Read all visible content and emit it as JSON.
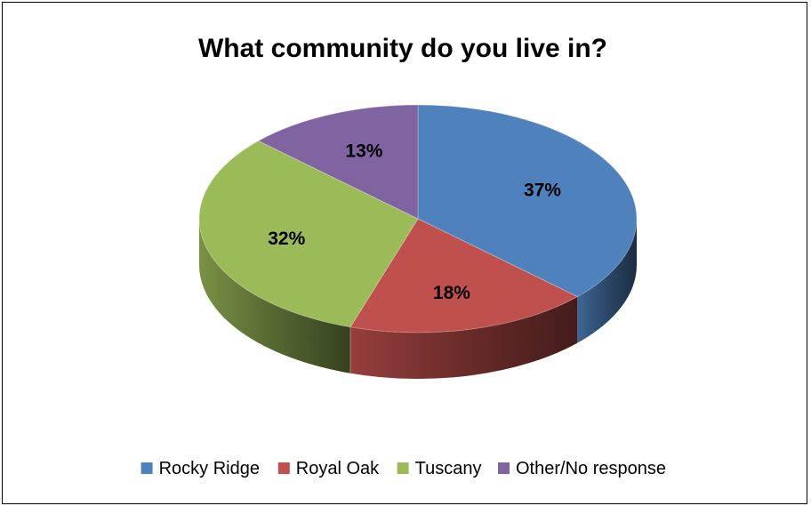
{
  "chart_data": {
    "type": "pie",
    "title": "What community do you live in?",
    "labels": [
      "Rocky Ridge",
      "Royal Oak",
      "Tuscany",
      "Other/No response"
    ],
    "values": [
      37,
      18,
      32,
      13
    ],
    "data_labels": [
      "37%",
      "18%",
      "32%",
      "13%"
    ],
    "colors": [
      "#4F81BD",
      "#C0504D",
      "#9BBB59",
      "#8064A2"
    ],
    "style": "3d",
    "legend": "bottom"
  }
}
